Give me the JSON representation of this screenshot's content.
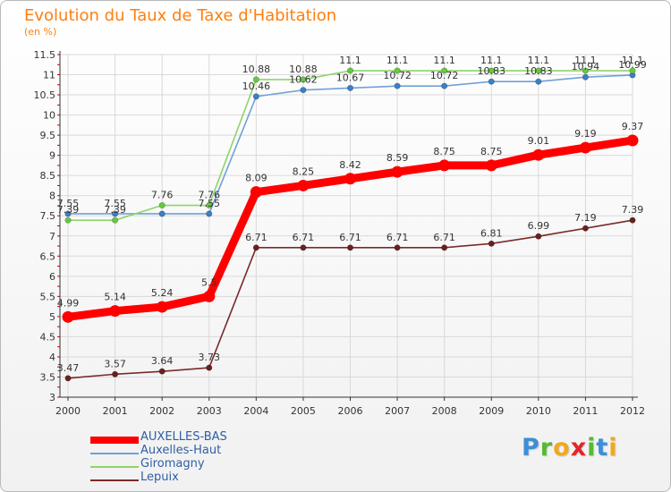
{
  "header": {
    "title": "Evolution du Taux de Taxe d'Habitation",
    "subtitle": "(en %)"
  },
  "colors": {
    "title": "#ff7f10",
    "grid": "#d9d9d9",
    "axis": "#333333",
    "tick_mark": "#cc0000",
    "legend_text": "#2f5ea6"
  },
  "brand": {
    "letters": [
      {
        "char": "P",
        "color": "#3c8fd6"
      },
      {
        "char": "r",
        "color": "#58b832"
      },
      {
        "char": "o",
        "color": "#f2a81d"
      },
      {
        "char": "x",
        "color": "#e2262b"
      },
      {
        "char": "i",
        "color": "#58b832"
      },
      {
        "char": "t",
        "color": "#3c8fd6"
      },
      {
        "char": "i",
        "color": "#f2a81d"
      }
    ]
  },
  "chart_data": {
    "type": "line",
    "title": "Evolution du Taux de Taxe d'Habitation",
    "subtitle": "(en %)",
    "xlabel": "",
    "ylabel": "",
    "x": [
      "2000",
      "2001",
      "2002",
      "2003",
      "2004",
      "2005",
      "2006",
      "2007",
      "2008",
      "2009",
      "2010",
      "2011",
      "2012"
    ],
    "ylim": [
      3,
      11.5
    ],
    "y_ticks": [
      "3",
      "3.5",
      "4",
      "4.5",
      "5",
      "5.5",
      "6",
      "6.5",
      "7",
      "7.5",
      "8",
      "8.5",
      "9",
      "9.5",
      "10",
      "10.5",
      "11",
      "11.5"
    ],
    "grid": true,
    "legend_position": "bottom-left",
    "series": [
      {
        "name": "AUXELLES-BAS",
        "color": "#ff0000",
        "emphasis": "thick",
        "values": [
          4.99,
          5.14,
          5.24,
          5.5,
          8.09,
          8.25,
          8.42,
          8.59,
          8.75,
          8.75,
          9.01,
          9.19,
          9.37
        ],
        "labels": [
          "4.99",
          "5.14",
          "5.24",
          "5.5",
          "8.09",
          "8.25",
          "8.42",
          "8.59",
          "8.75",
          "8.75",
          "9.01",
          "9.19",
          "9.37"
        ]
      },
      {
        "name": "Auxelles-Haut",
        "color": "#6fa1d8",
        "marker_color": "#3d7fc7",
        "emphasis": "thin",
        "values": [
          7.55,
          7.55,
          7.55,
          7.55,
          10.46,
          10.62,
          10.67,
          10.72,
          10.72,
          10.83,
          10.83,
          10.94,
          10.99
        ],
        "labels": [
          "7.55",
          "7.55",
          "",
          "7.55",
          "10.46",
          "10.62",
          "10.67",
          "10.72",
          "10.72",
          "10.83",
          "10.83",
          "10.94",
          "10.99"
        ]
      },
      {
        "name": "Giromagny",
        "color": "#8ed46a",
        "marker_color": "#66c93e",
        "emphasis": "thin",
        "values": [
          7.39,
          7.39,
          7.76,
          7.76,
          10.88,
          10.88,
          11.1,
          11.1,
          11.1,
          11.1,
          11.1,
          11.1,
          11.1
        ],
        "labels": [
          "7.39",
          "7.39",
          "7.76",
          "7.76",
          "10.88",
          "10.88",
          "11.1",
          "11.1",
          "11.1",
          "11.1",
          "11.1",
          "11.1",
          "11.1"
        ]
      },
      {
        "name": "Lepuix",
        "color": "#7a2a2a",
        "marker_color": "#6b1f1f",
        "emphasis": "thin",
        "values": [
          3.47,
          3.57,
          3.64,
          3.73,
          6.71,
          6.71,
          6.71,
          6.71,
          6.71,
          6.81,
          6.99,
          7.19,
          7.39
        ],
        "labels": [
          "3.47",
          "3.57",
          "3.64",
          "3.73",
          "6.71",
          "6.71",
          "6.71",
          "6.71",
          "6.71",
          "6.81",
          "6.99",
          "7.19",
          "7.39"
        ]
      }
    ]
  }
}
